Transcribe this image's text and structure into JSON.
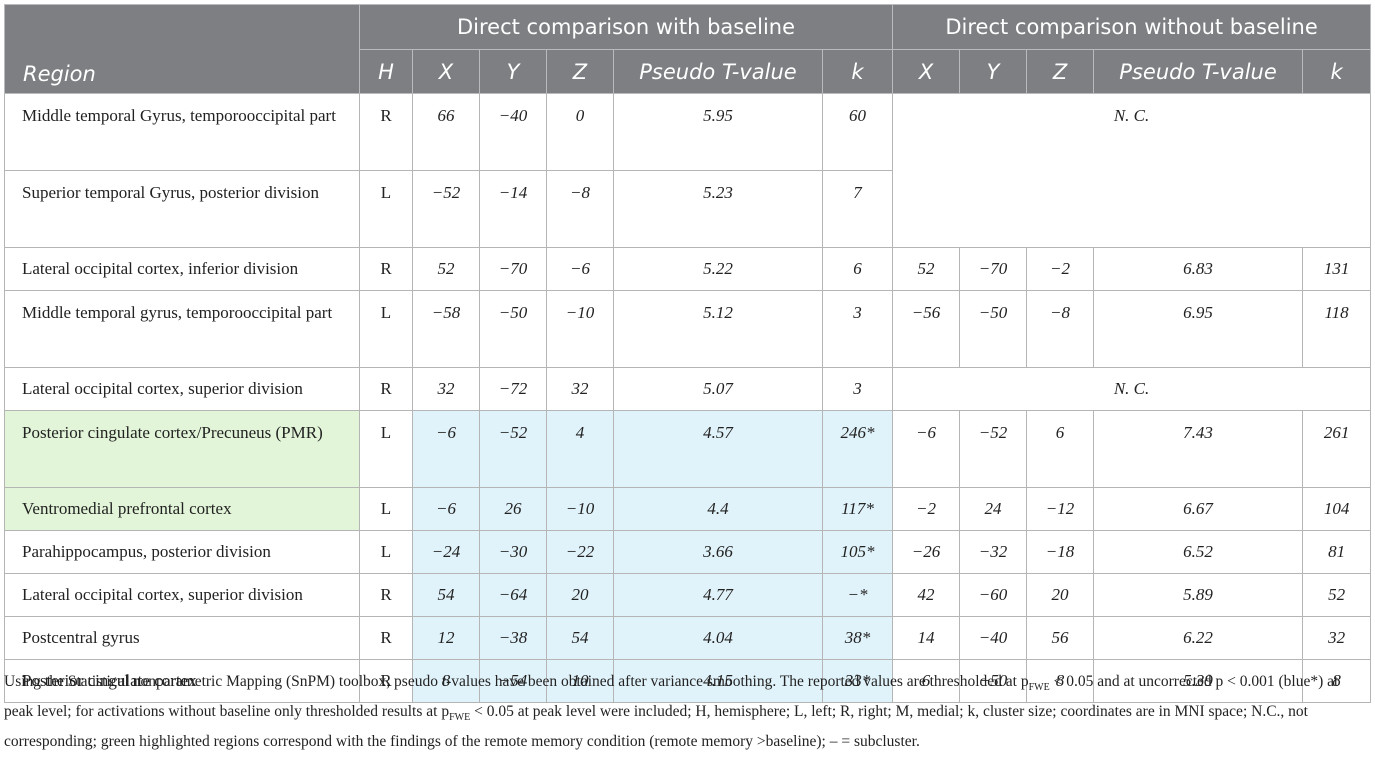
{
  "header": {
    "group_with": "Direct comparison with baseline",
    "group_without": "Direct comparison without baseline",
    "region": "Region",
    "h": "H",
    "x": "X",
    "y": "Y",
    "z": "Z",
    "pseudo_t": "Pseudo T-value",
    "k": "k"
  },
  "nc": "N. C.",
  "rows": [
    {
      "region": "Middle temporal Gyrus, temporooccipital part",
      "h": "R",
      "x": "66",
      "y": "−40",
      "z": "0",
      "t": "5.95",
      "k": "60"
    },
    {
      "region": "Superior temporal Gyrus, posterior division",
      "h": "L",
      "x": "−52",
      "y": "−14",
      "z": "−8",
      "t": "5.23",
      "k": "7"
    },
    {
      "region": "Lateral occipital cortex, inferior division",
      "h": "R",
      "x": "52",
      "y": "−70",
      "z": "−6",
      "t": "5.22",
      "k": "6",
      "x2": "52",
      "y2": "−70",
      "z2": "−2",
      "t2": "6.83",
      "k2": "131"
    },
    {
      "region": "Middle temporal gyrus, temporooccipital part",
      "h": "L",
      "x": "−58",
      "y": "−50",
      "z": "−10",
      "t": "5.12",
      "k": "3",
      "x2": "−56",
      "y2": "−50",
      "z2": "−8",
      "t2": "6.95",
      "k2": "118"
    },
    {
      "region": "Lateral occipital cortex, superior division",
      "h": "R",
      "x": "32",
      "y": "−72",
      "z": "32",
      "t": "5.07",
      "k": "3"
    },
    {
      "region": "Posterior cingulate cortex/Precuneus (PMR)",
      "h": "L",
      "x": "−6",
      "y": "−52",
      "z": "4",
      "t": "4.57",
      "k": "246*",
      "x2": "−6",
      "y2": "−52",
      "z2": "6",
      "t2": "7.43",
      "k2": "261"
    },
    {
      "region": "Ventromedial prefrontal cortex",
      "h": "L",
      "x": "−6",
      "y": "26",
      "z": "−10",
      "t": "4.4",
      "k": "117*",
      "x2": "−2",
      "y2": "24",
      "z2": "−12",
      "t2": "6.67",
      "k2": "104"
    },
    {
      "region": "Parahippocampus, posterior division",
      "h": "L",
      "x": "−24",
      "y": "−30",
      "z": "−22",
      "t": "3.66",
      "k": "105*",
      "x2": "−26",
      "y2": "−32",
      "z2": "−18",
      "t2": "6.52",
      "k2": "81"
    },
    {
      "region": "Lateral occipital cortex, superior division",
      "h": "R",
      "x": "54",
      "y": "−64",
      "z": "20",
      "t": "4.77",
      "k": "−*",
      "x2": "42",
      "y2": "−60",
      "z2": "20",
      "t2": "5.89",
      "k2": "52"
    },
    {
      "region": "Postcentral gyrus",
      "h": "R",
      "x": "12",
      "y": "−38",
      "z": "54",
      "t": "4.04",
      "k": "38*",
      "x2": "14",
      "y2": "−40",
      "z2": "56",
      "t2": "6.22",
      "k2": "32"
    },
    {
      "region": "Posterior cingulate cortex",
      "h": "R",
      "x": "8",
      "y": "−54",
      "z": "10",
      "t": "4.15",
      "k": "33*",
      "x2": "6",
      "y2": "−50",
      "z2": "8",
      "t2": "5.39",
      "k2": "8"
    }
  ],
  "footnote": {
    "part1": "Using the Statistical nonparametric Mapping (SnPM) toolbox, pseudo t-values have been obtained after variance smoothing. The reported values are thresholded at p",
    "sub1": "FWE",
    "part2": " < 0.05 and at uncorrected p < 0.001 (blue*) at peak level; for activations without baseline only thresholded results at p",
    "sub2": "FWE",
    "part3": " < 0.05 at peak level were included; H, hemisphere; L, left; R, right; M, medial; k, cluster size; coordinates are in MNI space; N.C., not corresponding; green highlighted regions correspond with the findings of the remote memory condition (remote memory >baseline); – = subcluster."
  },
  "colors": {
    "header_bg": "#7d7f82",
    "green_highlight": "#e2f5d8",
    "blue_highlight": "#e1f3fa"
  }
}
